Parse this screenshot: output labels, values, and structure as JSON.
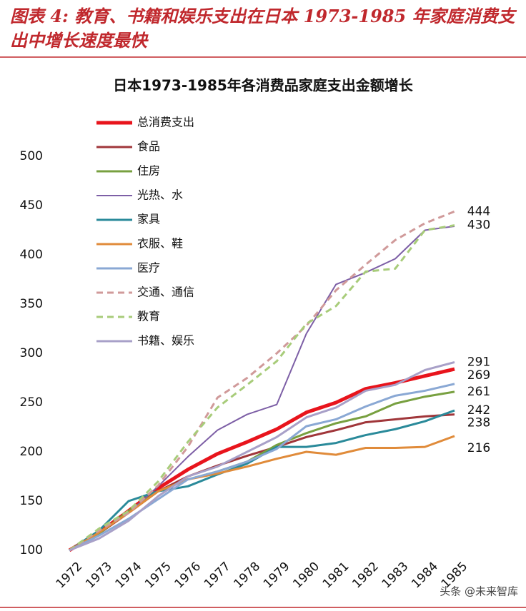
{
  "header": {
    "title": "图表 4: 教育、书籍和娱乐支出在日本 1973-1985 年家庭消费支出中增长速度最快"
  },
  "chart_data": {
    "type": "line",
    "title": "日本1973-1985年各消费品家庭支出金额增长",
    "categories": [
      "1972",
      "1973",
      "1974",
      "1975",
      "1976",
      "1977",
      "1978",
      "1979",
      "1980",
      "1981",
      "1982",
      "1983",
      "1984",
      "1985"
    ],
    "ylim": [
      100,
      500
    ],
    "yticks": [
      100,
      150,
      200,
      250,
      300,
      350,
      400,
      450,
      500
    ],
    "grid": false,
    "legend": "top-left",
    "series": [
      {
        "name": "总消费支出",
        "color": "#e8141c",
        "width": 5,
        "dashed": false,
        "show_end_label": false,
        "values": [
          100,
          118,
          140,
          163,
          182,
          198,
          210,
          223,
          240,
          250,
          264,
          270,
          277,
          284
        ]
      },
      {
        "name": "食品",
        "color": "#a0363a",
        "width": 3,
        "dashed": false,
        "show_end_label": true,
        "values": [
          100,
          117,
          138,
          160,
          175,
          186,
          196,
          205,
          215,
          222,
          230,
          233,
          236,
          238
        ]
      },
      {
        "name": "住房",
        "color": "#78a040",
        "width": 3,
        "dashed": false,
        "show_end_label": true,
        "values": [
          100,
          117,
          140,
          160,
          172,
          180,
          190,
          207,
          219,
          229,
          236,
          249,
          256,
          261
        ]
      },
      {
        "name": "光热、水",
        "color": "#7d5fa6",
        "width": 2,
        "dashed": false,
        "show_end_label": false,
        "values": [
          100,
          118,
          138,
          165,
          195,
          222,
          238,
          248,
          320,
          370,
          382,
          396,
          425,
          429
        ]
      },
      {
        "name": "家具",
        "color": "#2a8a9a",
        "width": 3,
        "dashed": false,
        "show_end_label": true,
        "values": [
          100,
          120,
          150,
          160,
          165,
          177,
          188,
          205,
          205,
          209,
          217,
          223,
          231,
          242
        ]
      },
      {
        "name": "衣服、鞋",
        "color": "#e08b3a",
        "width": 3,
        "dashed": false,
        "show_end_label": true,
        "values": [
          100,
          118,
          138,
          160,
          172,
          178,
          185,
          193,
          200,
          197,
          204,
          204,
          205,
          216
        ]
      },
      {
        "name": "医疗",
        "color": "#8aa8d4",
        "width": 3,
        "dashed": false,
        "show_end_label": true,
        "values": [
          100,
          115,
          132,
          152,
          172,
          180,
          190,
          203,
          226,
          233,
          246,
          257,
          262,
          269
        ]
      },
      {
        "name": "交通、通信",
        "color": "#d09a9a",
        "width": 3,
        "dashed": true,
        "show_end_label": true,
        "values": [
          100,
          120,
          138,
          166,
          205,
          255,
          275,
          300,
          328,
          364,
          390,
          415,
          432,
          444
        ]
      },
      {
        "name": "教育",
        "color": "#a8cc7a",
        "width": 3,
        "dashed": true,
        "show_end_label": true,
        "values": [
          100,
          122,
          140,
          170,
          210,
          245,
          268,
          292,
          330,
          348,
          383,
          386,
          425,
          430
        ]
      },
      {
        "name": "书籍、娱乐",
        "color": "#a8a0c8",
        "width": 3,
        "dashed": false,
        "show_end_label": true,
        "values": [
          100,
          112,
          130,
          155,
          175,
          185,
          200,
          215,
          235,
          245,
          262,
          268,
          283,
          291
        ]
      }
    ]
  },
  "watermark": "头条 @未来智库"
}
